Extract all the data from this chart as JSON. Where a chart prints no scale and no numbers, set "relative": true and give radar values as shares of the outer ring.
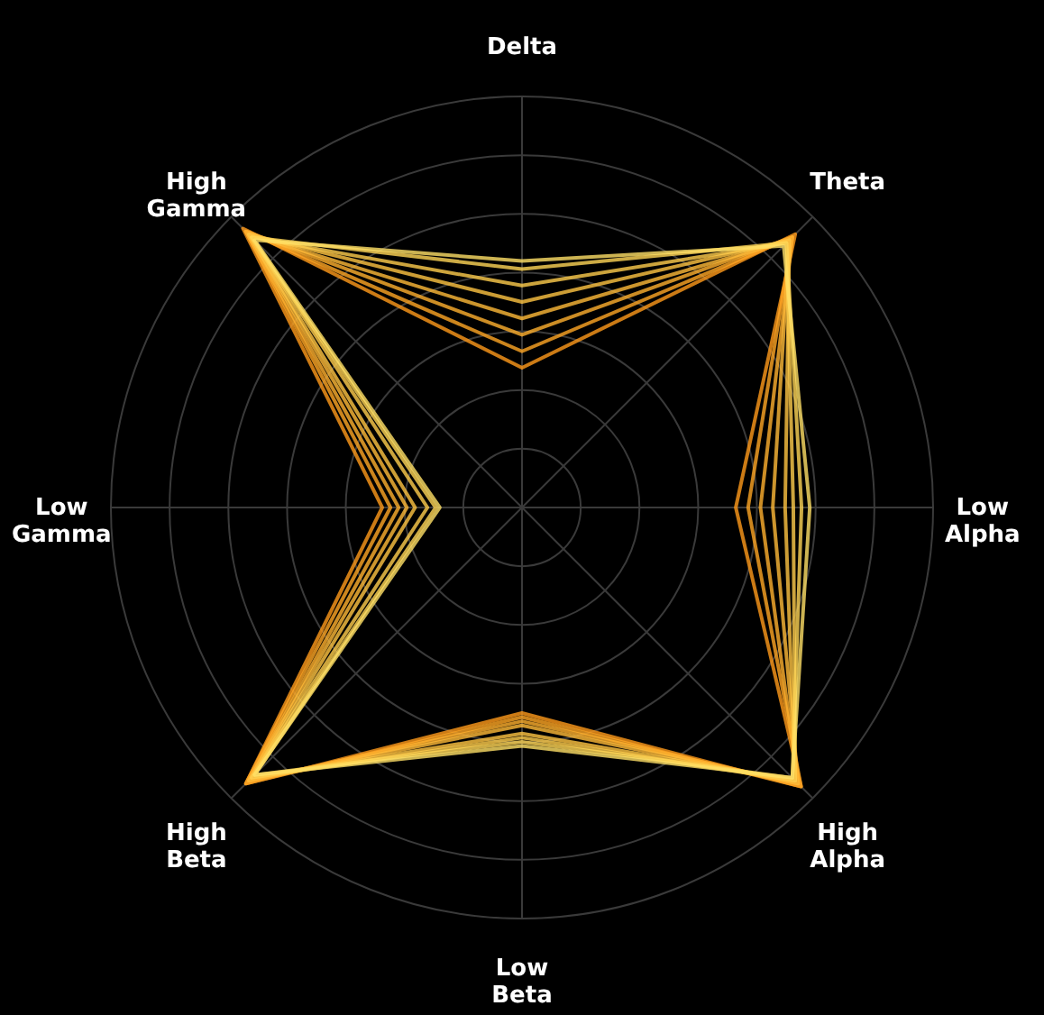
{
  "chart_data": {
    "type": "radar",
    "relative": true,
    "grid": true,
    "categories": [
      "Delta",
      "Theta",
      "Low Alpha",
      "High Alpha",
      "Low Beta",
      "High Beta",
      "Low Gamma",
      "High Gamma"
    ],
    "series": [
      {
        "color": "#ff9a1a",
        "values": [
          0.34,
          0.94,
          0.52,
          0.96,
          0.5,
          0.95,
          0.34,
          0.96
        ]
      },
      {
        "color": "#ffa624",
        "values": [
          0.38,
          0.93,
          0.55,
          0.96,
          0.51,
          0.95,
          0.32,
          0.95
        ]
      },
      {
        "color": "#ffb02e",
        "values": [
          0.42,
          0.93,
          0.58,
          0.95,
          0.52,
          0.94,
          0.3,
          0.95
        ]
      },
      {
        "color": "#ffba38",
        "values": [
          0.46,
          0.92,
          0.61,
          0.95,
          0.53,
          0.94,
          0.28,
          0.94
        ]
      },
      {
        "color": "#ffc442",
        "values": [
          0.5,
          0.92,
          0.64,
          0.94,
          0.55,
          0.93,
          0.26,
          0.94
        ]
      },
      {
        "color": "#ffcd4c",
        "values": [
          0.54,
          0.91,
          0.66,
          0.94,
          0.56,
          0.93,
          0.23,
          0.93
        ]
      },
      {
        "color": "#ffd656",
        "values": [
          0.58,
          0.91,
          0.68,
          0.93,
          0.57,
          0.92,
          0.21,
          0.93
        ]
      },
      {
        "color": "#ffe066",
        "values": [
          0.6,
          0.9,
          0.7,
          0.93,
          0.58,
          0.92,
          0.2,
          0.92
        ]
      }
    ]
  }
}
